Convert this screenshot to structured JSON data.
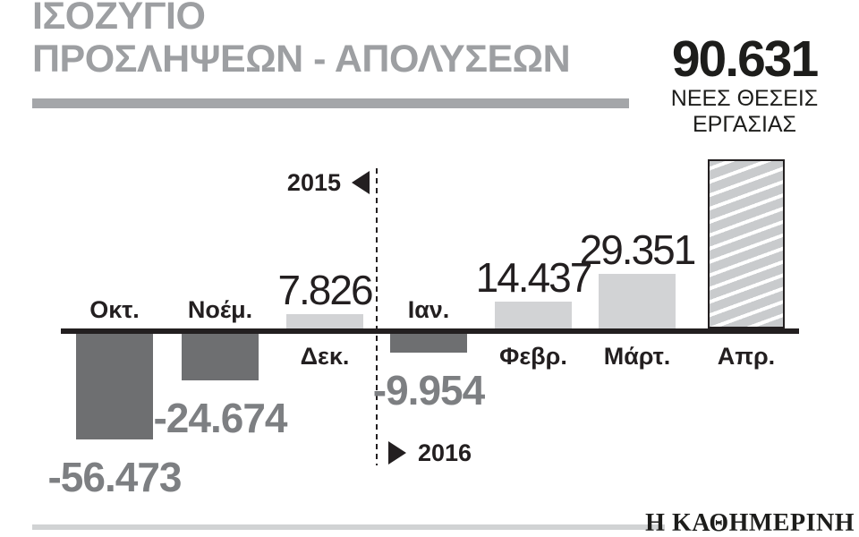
{
  "title": {
    "line1": "ΙΣΟΖΥΓΙΟ",
    "line2": "ΠΡΟΣΛΗΨΕΩΝ - ΑΠΟΛΥΣΕΩΝ"
  },
  "headline": {
    "value": "90.631",
    "label_line1": "ΝΕΕΣ ΘΕΣΕΙΣ",
    "label_line2": "ΕΡΓΑΣΙΑΣ"
  },
  "year_markers": {
    "left": "2015",
    "right": "2016"
  },
  "footer": {
    "brand": "Η ΚΑΘΗΜΕΡΙΝΗ"
  },
  "colors": {
    "title_gray": "#9d9fa2",
    "bar_negative": "#6e6f71",
    "bar_positive": "#d2d3d5",
    "hatch_stripe": "#c9cbcd",
    "axis_black": "#231f20",
    "negative_value_gray": "#7d7f82",
    "footer_rule_gray": "#d1d3d4",
    "text_black": "#1d1d1b"
  },
  "chart_data": {
    "type": "bar",
    "title": "ΙΣΟΖΥΓΙΟ ΠΡΟΣΛΗΨΕΩΝ - ΑΠΟΛΥΣΕΩΝ",
    "categories": [
      "Οκτ.",
      "Νοέμ.",
      "Δεκ.",
      "Ιαν.",
      "Φεβρ.",
      "Μάρτ.",
      "Απρ."
    ],
    "values": [
      -56473,
      -24674,
      7826,
      -9954,
      14437,
      29351,
      90631
    ],
    "value_labels": [
      "-56.473",
      "-24.674",
      "7.826",
      "-9.954",
      "14.437",
      "29.351",
      "90.631"
    ],
    "year_groups": [
      {
        "year": "2015",
        "categories": [
          "Οκτ.",
          "Νοέμ.",
          "Δεκ."
        ]
      },
      {
        "year": "2016",
        "categories": [
          "Ιαν.",
          "Φεβρ.",
          "Μάρτ.",
          "Απρ."
        ]
      }
    ],
    "highlighted_category": "Απρ.",
    "highlight_note": "90.631 ΝΕΕΣ ΘΕΣΕΙΣ ΕΡΓΑΣΙΑΣ",
    "ylim": [
      -60000,
      95000
    ],
    "grid": false,
    "legend": false,
    "baseline": 0
  }
}
